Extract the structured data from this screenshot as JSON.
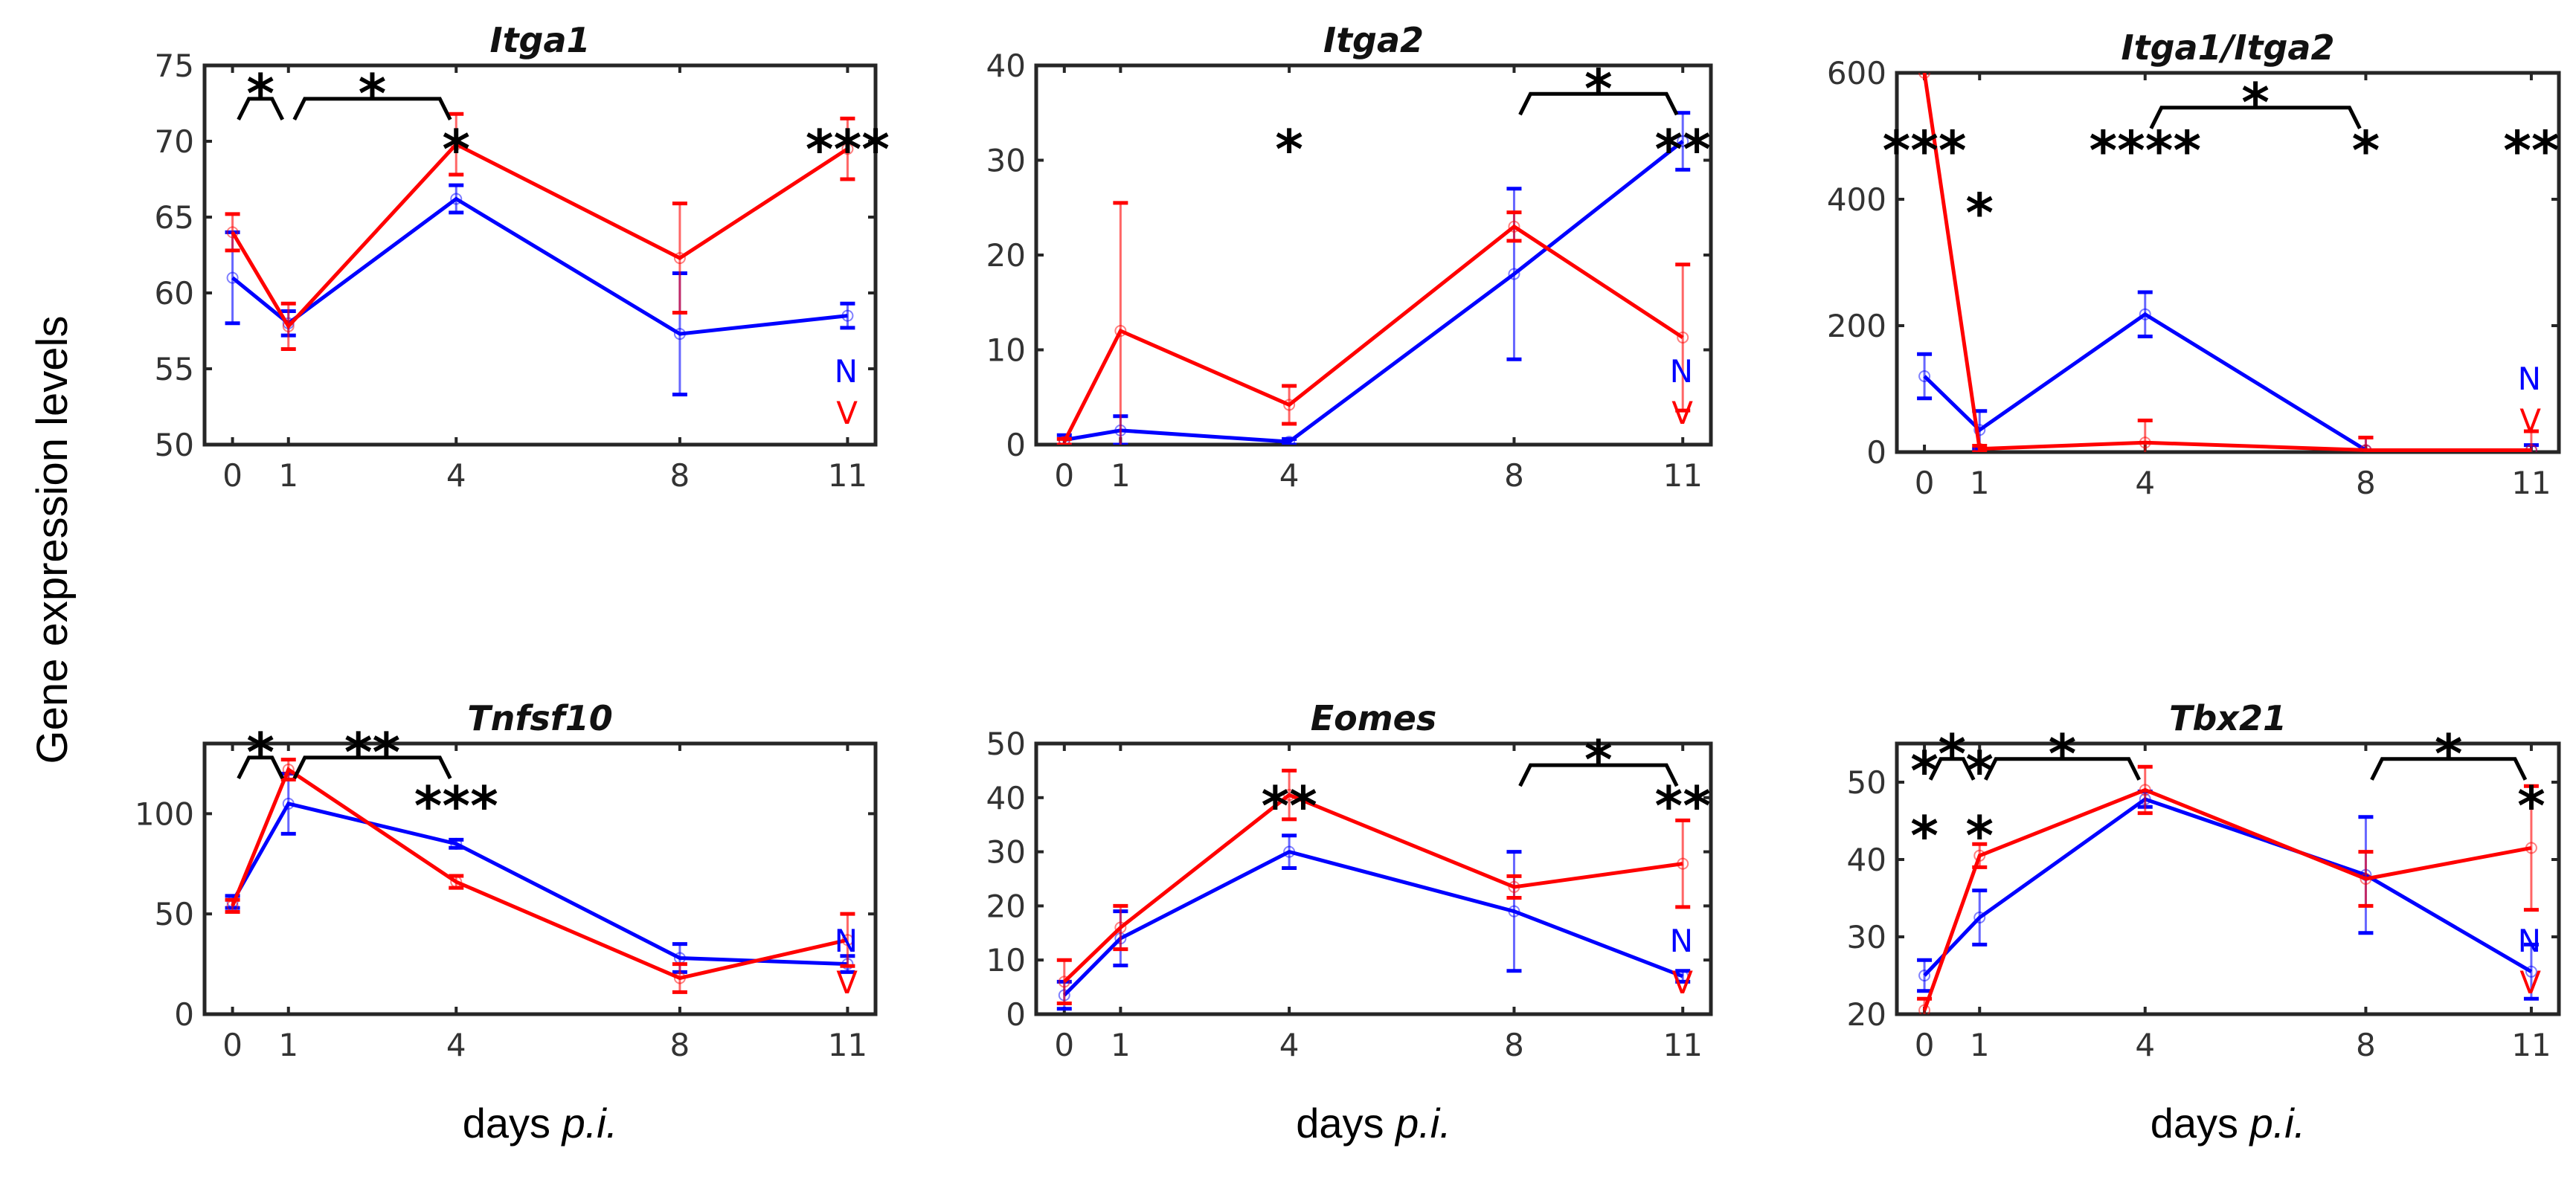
{
  "chart_data": [
    {
      "type": "line",
      "title": "Itga1",
      "xlabel": "",
      "ylim": [
        50,
        75
      ],
      "yticks": [
        50,
        55,
        60,
        65,
        70,
        75
      ],
      "x": [
        0,
        1,
        4,
        8,
        11
      ],
      "xlim": [
        -0.5,
        11.5
      ],
      "series": [
        {
          "name": "N",
          "color": "#0000ff",
          "values": [
            61,
            58,
            66.2,
            57.3,
            58.5
          ],
          "errors": [
            3,
            0.8,
            0.9,
            4,
            0.8
          ]
        },
        {
          "name": "V",
          "color": "#ff0000",
          "values": [
            64,
            57.8,
            69.8,
            62.3,
            69.5
          ],
          "errors": [
            1.2,
            1.5,
            2,
            3.6,
            2
          ]
        }
      ],
      "annotations": [
        {
          "text": "*",
          "x": 4,
          "y": 70
        },
        {
          "text": "***",
          "x": 11,
          "y": 70
        }
      ],
      "brackets": [
        {
          "from": 0,
          "to": 1,
          "y": 72.8,
          "text": "*"
        },
        {
          "from": 1,
          "to": 4,
          "y": 72.8,
          "text": "*"
        }
      ]
    },
    {
      "type": "line",
      "title": "Itga2",
      "xlabel": "",
      "ylim": [
        0,
        40
      ],
      "yticks": [
        0,
        10,
        20,
        30,
        40
      ],
      "x": [
        0,
        1,
        4,
        8,
        11
      ],
      "xlim": [
        -0.5,
        11.5
      ],
      "series": [
        {
          "name": "N",
          "color": "#0000ff",
          "values": [
            0.5,
            1.5,
            0.3,
            18,
            32
          ],
          "errors": [
            0.5,
            1.5,
            0.3,
            9,
            3
          ]
        },
        {
          "name": "V",
          "color": "#ff0000",
          "values": [
            0.3,
            12,
            4.2,
            23,
            11.3
          ],
          "errors": [
            0.3,
            13.5,
            2,
            1.5,
            7.7
          ]
        }
      ],
      "annotations": [
        {
          "text": "*",
          "x": 4,
          "y": 32
        },
        {
          "text": "**",
          "x": 11,
          "y": 32
        }
      ],
      "brackets": [
        {
          "from": 8,
          "to": 11,
          "y": 37,
          "text": "*"
        }
      ]
    },
    {
      "type": "line",
      "title": "Itga1/Itga2",
      "xlabel": "",
      "ylim": [
        0,
        600
      ],
      "yticks": [
        0,
        200,
        400,
        600
      ],
      "x": [
        0,
        1,
        4,
        8,
        11
      ],
      "xlim": [
        -0.5,
        11.5
      ],
      "series": [
        {
          "name": "N",
          "color": "#0000ff",
          "values": [
            120,
            35,
            218,
            3,
            3
          ],
          "errors": [
            35,
            30,
            35,
            20,
            8
          ]
        },
        {
          "name": "V",
          "color": "#ff0000",
          "values": [
            600,
            5,
            15,
            3,
            3
          ],
          "errors": [
            0,
            5,
            35,
            20,
            30
          ]
        }
      ],
      "annotations": [
        {
          "text": "***",
          "x": 0,
          "y": 490
        },
        {
          "text": "*",
          "x": 1,
          "y": 490
        },
        {
          "text": "****",
          "x": 4,
          "y": 490
        },
        {
          "text": "*",
          "x": 8,
          "y": 490
        },
        {
          "text": "**",
          "x": 11,
          "y": 490
        }
      ],
      "brackets": [
        {
          "from": 4,
          "to": 8,
          "y": 545,
          "text": "*"
        }
      ]
    },
    {
      "type": "line",
      "title": "Tnfsf10",
      "xlabel": "days p.i.",
      "ylim": [
        0,
        135
      ],
      "yticks": [
        0,
        50,
        100
      ],
      "x": [
        0,
        1,
        4,
        8,
        11
      ],
      "xlim": [
        -0.5,
        11.5
      ],
      "series": [
        {
          "name": "N",
          "color": "#0000ff",
          "values": [
            56,
            105,
            85,
            28,
            25
          ],
          "errors": [
            3,
            15,
            2,
            7,
            4
          ]
        },
        {
          "name": "V",
          "color": "#ff0000",
          "values": [
            54,
            122,
            66,
            18,
            37
          ],
          "errors": [
            3,
            5,
            3,
            7,
            13
          ]
        }
      ],
      "annotations": [
        {
          "text": "***",
          "x": 4,
          "y": 108
        }
      ],
      "brackets": [
        {
          "from": 0,
          "to": 1,
          "y": 128,
          "text": "*"
        },
        {
          "from": 1,
          "to": 4,
          "y": 128,
          "text": "**"
        }
      ]
    },
    {
      "type": "line",
      "title": "Eomes",
      "xlabel": "days p.i.",
      "ylim": [
        0,
        50
      ],
      "yticks": [
        0,
        10,
        20,
        30,
        40,
        50
      ],
      "x": [
        0,
        1,
        4,
        8,
        11
      ],
      "xlim": [
        -0.5,
        11.5
      ],
      "series": [
        {
          "name": "N",
          "color": "#0000ff",
          "values": [
            3.5,
            14,
            30,
            19,
            7
          ],
          "errors": [
            2.5,
            5,
            3,
            11,
            1
          ]
        },
        {
          "name": "V",
          "color": "#ff0000",
          "values": [
            6,
            16,
            40.5,
            23.5,
            27.8
          ],
          "errors": [
            4,
            4,
            4.5,
            2,
            8
          ]
        }
      ],
      "annotations": [
        {
          "text": "**",
          "x": 4,
          "y": 40
        },
        {
          "text": "**",
          "x": 11,
          "y": 40
        }
      ],
      "brackets": [
        {
          "from": 8,
          "to": 11,
          "y": 46,
          "text": "*"
        }
      ]
    },
    {
      "type": "line",
      "title": "Tbx21",
      "xlabel": "days p.i.",
      "ylim": [
        20,
        55
      ],
      "yticks": [
        20,
        30,
        40,
        50
      ],
      "x": [
        0,
        1,
        4,
        8,
        11
      ],
      "xlim": [
        -0.5,
        11.5
      ],
      "series": [
        {
          "name": "N",
          "color": "#0000ff",
          "values": [
            25,
            32.5,
            47.8,
            38,
            25.5
          ],
          "errors": [
            2,
            3.5,
            1,
            7.5,
            3.5
          ]
        },
        {
          "name": "V",
          "color": "#ff0000",
          "values": [
            20.5,
            40.5,
            49,
            37.5,
            41.5
          ],
          "errors": [
            1.5,
            1.5,
            3,
            3.5,
            8
          ]
        }
      ],
      "annotations": [
        {
          "text": "*",
          "x": 0,
          "y": 52.5
        },
        {
          "text": "*",
          "x": 1,
          "y": 52.5
        },
        {
          "text": "*",
          "x": 0,
          "y": 48
        },
        {
          "text": "*",
          "x": 1,
          "y": 48
        },
        {
          "text": "*",
          "x": 11,
          "y": 48
        }
      ],
      "brackets": [
        {
          "from": 0,
          "to": 1,
          "y": 53,
          "text": "*"
        },
        {
          "from": 1,
          "to": 4,
          "y": 53,
          "text": "*"
        },
        {
          "from": 8,
          "to": 11,
          "y": 53,
          "text": "*"
        }
      ]
    }
  ],
  "ylabel": "Gene expression levels",
  "xlabel_prefix": "days",
  "xlabel_italic": "p.i.",
  "legend": [
    "N",
    "V"
  ]
}
